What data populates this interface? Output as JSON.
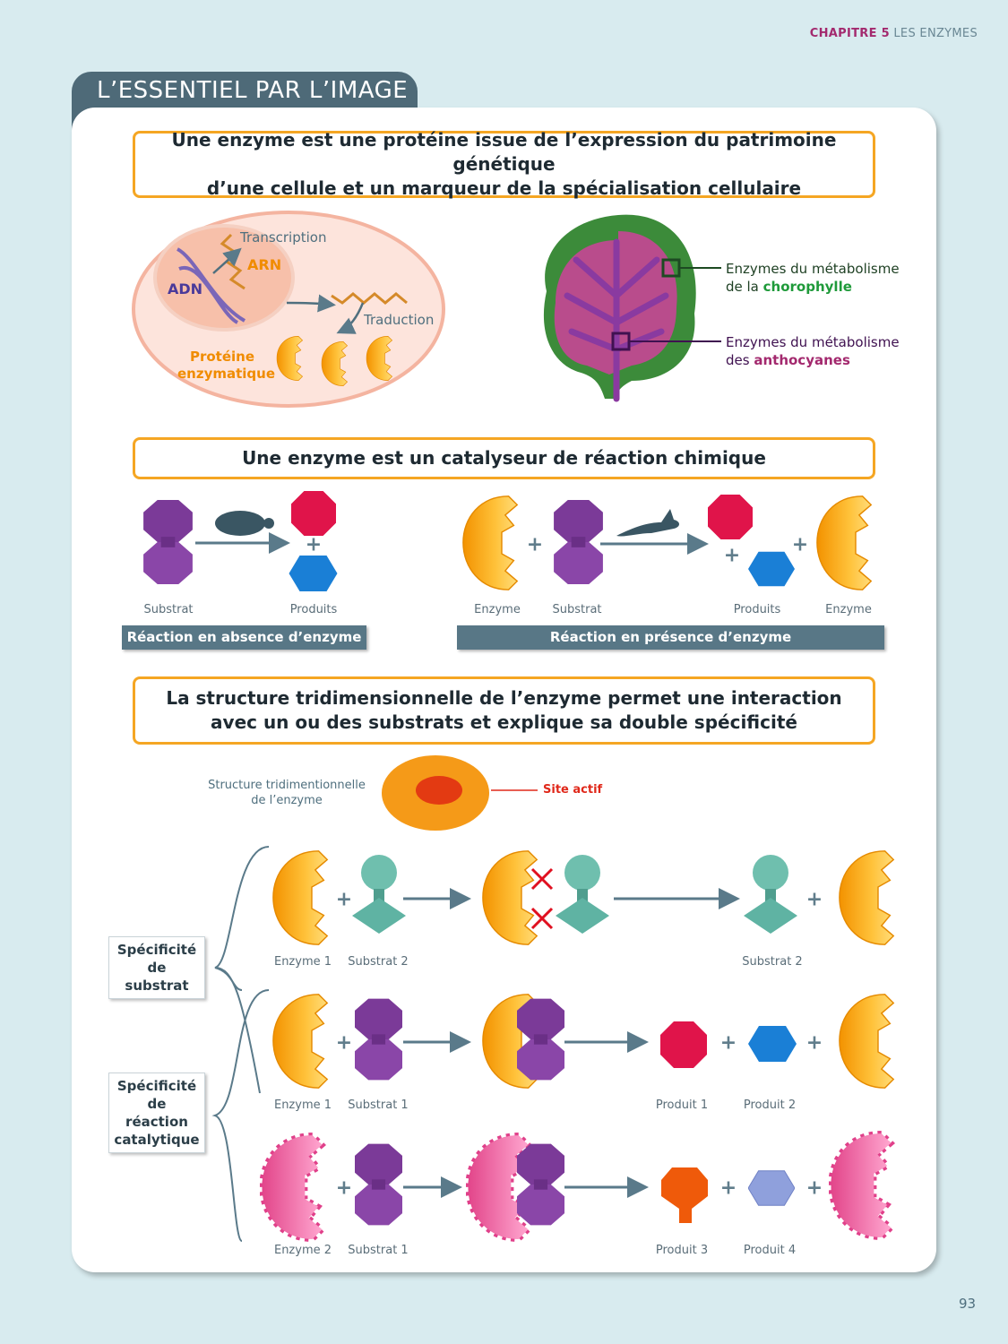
{
  "header": {
    "chapter": "CHAPITRE 5",
    "chapter_title": "LES ENZYMES"
  },
  "tab_title": "L’ESSENTIEL PAR L’IMAGE",
  "section1": {
    "title_line1": "Une enzyme est une protéine issue de l’expression du patrimoine génétique",
    "title_line2": "d’une cellule et un marqueur de la spécialisation cellulaire",
    "cell": {
      "transcription": "Transcription",
      "arn": "ARN",
      "adn": "ADN",
      "traduction": "Traduction",
      "protein_line1": "Protéine",
      "protein_line2": "enzymatique"
    },
    "leaf": {
      "label1_line1": "Enzymes du métabolisme",
      "label1_prefix": "de la ",
      "label1_highlight": "chorophylle",
      "label2_line1": "Enzymes du métabolisme",
      "label2_prefix": "des ",
      "label2_highlight": "anthocyanes"
    }
  },
  "section2": {
    "title": "Une enzyme est un catalyseur de réaction chimique",
    "left": {
      "substrat": "Substrat",
      "produits": "Produits",
      "bar": "Réaction en absence d’enzyme"
    },
    "right": {
      "enzyme": "Enzyme",
      "substrat": "Substrat",
      "produits": "Produits",
      "enzyme2": "Enzyme",
      "bar": "Réaction en présence d’enzyme"
    }
  },
  "section3": {
    "title_line1": "La structure tridimensionnelle de l’enzyme permet une interaction",
    "title_line2": "avec un ou des substrats et explique sa double spécificité",
    "structure_line1": "Structure tridimentionnelle",
    "structure_line2": "de l’enzyme",
    "site_actif": "Site actif",
    "spec1": [
      "Spécificité",
      "de",
      "substrat"
    ],
    "spec2": [
      "Spécificité",
      "de",
      "réaction",
      "catalytique"
    ],
    "row1": {
      "enzyme": "Enzyme 1",
      "substrat": "Substrat 2",
      "result": "Substrat 2"
    },
    "row2": {
      "enzyme": "Enzyme 1",
      "substrat": "Substrat 1",
      "p1": "Produit 1",
      "p2": "Produit 2"
    },
    "row3": {
      "enzyme": "Enzyme 2",
      "substrat": "Substrat 1",
      "p1": "Produit 3",
      "p2": "Produit 4"
    }
  },
  "plus": "+",
  "page_number": "93",
  "colors": {
    "background": "#d8ebef",
    "tab": "#4e6a78",
    "box_border": "#f5a623",
    "chapter": "#a3296e",
    "enzyme": "#f7a21b",
    "substrate1": "#7b3a98",
    "substrate2": "#5fb3a3",
    "product_red": "#e0144a",
    "product_blue": "#1a7fd6",
    "enzyme2": "#f06aa8"
  }
}
